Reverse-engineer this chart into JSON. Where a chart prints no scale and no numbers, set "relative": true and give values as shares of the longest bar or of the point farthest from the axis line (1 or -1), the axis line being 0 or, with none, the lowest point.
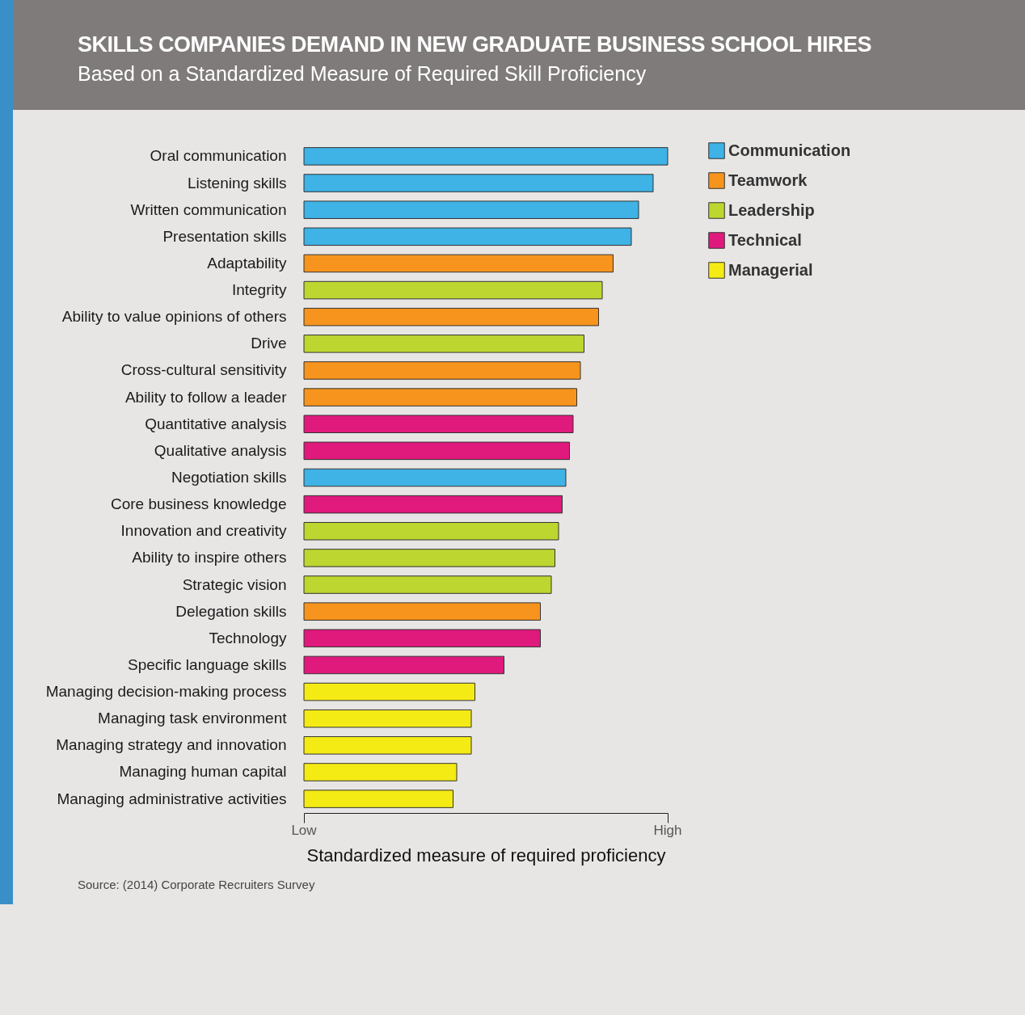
{
  "chart_data": {
    "type": "bar",
    "orientation": "horizontal",
    "title": "SKILLS COMPANIES DEMAND IN NEW GRADUATE BUSINESS SCHOOL HIRES",
    "subtitle": "Based on a Standardized Measure of Required Skill Proficiency",
    "xlabel": "Standardized measure of required proficiency",
    "categories": [
      "Oral communication",
      "Listening skills",
      "Written communication",
      "Presentation skills",
      "Adaptability",
      "Integrity",
      "Ability to value opinions of others",
      "Drive",
      "Cross-cultural sensitivity",
      "Ability to follow a leader",
      "Quantitative analysis",
      "Qualitative analysis",
      "Negotiation skills",
      "Core business knowledge",
      "Innovation and creativity",
      "Ability to inspire others",
      "Strategic vision",
      "Delegation skills",
      "Technology",
      "Specific language skills",
      "Managing decision-making process",
      "Managing task environment",
      "Managing strategy and innovation",
      "Managing human capital",
      "Managing administrative activities"
    ],
    "series": [
      {
        "name": "Communication",
        "color": "#3fb2e6",
        "values": [
          1.0,
          0.96,
          0.92,
          0.9,
          null,
          null,
          null,
          null,
          null,
          null,
          null,
          null,
          0.72,
          null,
          null,
          null,
          null,
          null,
          null,
          null,
          null,
          null,
          null,
          null,
          null
        ]
      },
      {
        "name": "Teamwork",
        "color": "#f7941d",
        "values": [
          null,
          null,
          null,
          null,
          0.85,
          null,
          0.81,
          null,
          0.76,
          0.75,
          null,
          null,
          null,
          null,
          null,
          null,
          null,
          0.65,
          null,
          null,
          null,
          null,
          null,
          null,
          null
        ]
      },
      {
        "name": "Leadership",
        "color": "#bdd630",
        "values": [
          null,
          null,
          null,
          null,
          null,
          0.82,
          null,
          0.77,
          null,
          null,
          null,
          null,
          null,
          null,
          0.7,
          0.69,
          0.68,
          null,
          null,
          null,
          null,
          null,
          null,
          null,
          null
        ]
      },
      {
        "name": "Technical",
        "color": "#e0197d",
        "values": [
          null,
          null,
          null,
          null,
          null,
          null,
          null,
          null,
          null,
          null,
          0.74,
          0.73,
          null,
          0.71,
          null,
          null,
          null,
          null,
          0.65,
          0.55,
          null,
          null,
          null,
          null,
          null
        ]
      },
      {
        "name": "Managerial",
        "color": "#f5eb14",
        "values": [
          null,
          null,
          null,
          null,
          null,
          null,
          null,
          null,
          null,
          null,
          null,
          null,
          null,
          null,
          null,
          null,
          null,
          null,
          null,
          null,
          0.47,
          0.46,
          0.46,
          0.42,
          0.41
        ]
      }
    ],
    "relative": true,
    "grid": false,
    "legend": "right",
    "annotations": [
      "Low",
      "High",
      "Source: (2014) Corporate Recruiters Survey"
    ]
  }
}
